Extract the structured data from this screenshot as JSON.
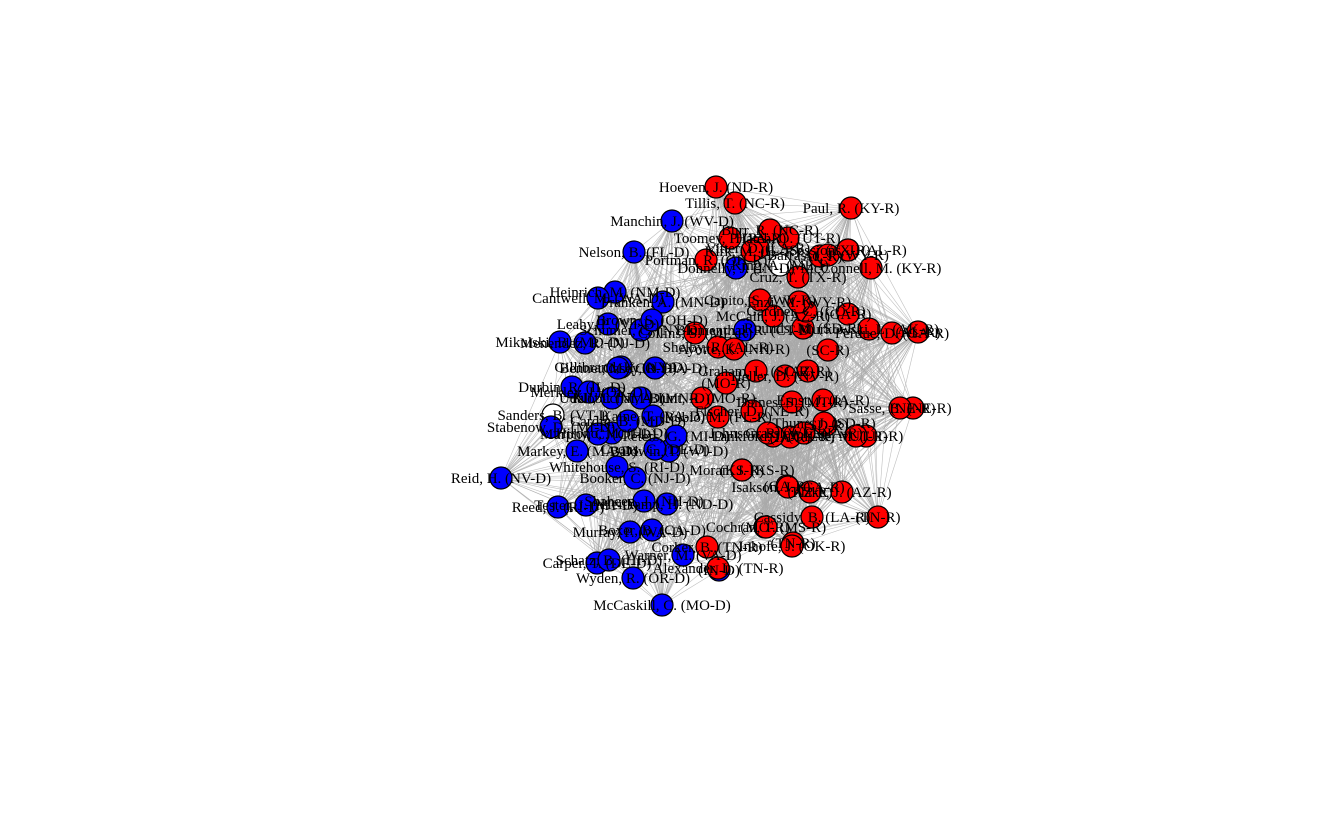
{
  "graph": {
    "type": "network",
    "edge_color": "#a9a9a9",
    "node_outline_color": "#000000",
    "party_colors": {
      "R": "#ff0000",
      "D": "#0000ff",
      "I": "#ffffff"
    },
    "nodes": [
      {
        "label": "Hoeven, J. (ND-R)",
        "party": "R"
      },
      {
        "label": "Tillis, T. (NC-R)",
        "party": "R"
      },
      {
        "label": "Paul, R. (KY-R)",
        "party": "R"
      },
      {
        "label": "Manchin, J. (WV-D)",
        "party": "D"
      },
      {
        "label": "Nelson, B. (FL-D)",
        "party": "D"
      },
      {
        "label": "McConnell, M. (KY-R)",
        "party": "R"
      },
      {
        "label": "Heinrich, M. (NM-D)",
        "party": "D"
      },
      {
        "label": "Cantwell, M. (WA-D)",
        "party": "D"
      },
      {
        "label": "Leahy, P. (VT-D)",
        "party": "D"
      },
      {
        "label": "(GA-R)",
        "party": "R"
      },
      {
        "label": "(AL-R)",
        "party": "R"
      },
      {
        "label": "(SC-R)",
        "party": "R"
      },
      {
        "label": "(AZ-R)",
        "party": "R"
      },
      {
        "label": "(MO-R)",
        "party": "R"
      },
      {
        "label": "(NE-R)",
        "party": "R"
      },
      {
        "label": "(UT-R)",
        "party": "R"
      },
      {
        "label": "Sanders, B. (VT-I)",
        "party": "I"
      },
      {
        "label": "Markey, E. (MA-D)",
        "party": "D"
      },
      {
        "label": "Reid, H. (NV-D)",
        "party": "D"
      },
      {
        "label": "Murray, P. (WA-D)",
        "party": "D"
      },
      {
        "label": "(TN-R)",
        "party": "R"
      },
      {
        "label": "(TN-R)",
        "party": "R"
      },
      {
        "label": "(IN-D)",
        "party": "D"
      },
      {
        "label": "Carper, T. (DE-D)",
        "party": "D"
      },
      {
        "label": "Wyden, R. (OR-D)",
        "party": "D"
      },
      {
        "label": "McCaskill, C. (MO-D)",
        "party": "D"
      },
      {
        "label": "(KS-R)",
        "party": "R"
      },
      {
        "label": "(AZ-R)",
        "party": "R"
      },
      {
        "label": "(GA-R)",
        "party": "R"
      },
      {
        "label": "(MO-R)",
        "party": "R"
      },
      {
        "label": "(TX-R)",
        "party": "R"
      },
      {
        "label": "(AL-R)",
        "party": "R"
      },
      {
        "label": "(SD-R)",
        "party": "R"
      },
      {
        "label": "(IA-R)",
        "party": "R"
      },
      {
        "label": "Durbin, R. (IL-D)",
        "party": "D"
      },
      {
        "label": "Gillibrand, K. (NY-D)",
        "party": "D"
      },
      {
        "label": "Mikulski, B. (MD-D)",
        "party": "D"
      },
      {
        "label": "Menendez, R. (NJ-D)",
        "party": "D"
      },
      {
        "label": "Merkley, J. (OR-D)",
        "party": "D"
      },
      {
        "label": "Stabenow, D. (MI-D)",
        "party": "D"
      },
      {
        "label": "Hirono, M. (HI-D)",
        "party": "D"
      },
      {
        "label": "Whitehouse, S. (RI-D)",
        "party": "D"
      },
      {
        "label": "Booker, C. (NJ-D)",
        "party": "D"
      },
      {
        "label": "Reed, J. (RI-D)",
        "party": "D"
      },
      {
        "label": "Schatz, B. (HI-D)",
        "party": "D"
      },
      {
        "label": "Blunt, R. (MO-R)",
        "party": "R"
      },
      {
        "label": "Cassidy, B. (LA-R)",
        "party": "R"
      },
      {
        "label": "Cochran, T. (MS-R)",
        "party": "R"
      },
      {
        "label": "Isakson, J. (GA-R)",
        "party": "R"
      },
      {
        "label": "Flake, J. (AZ-R)",
        "party": "R"
      },
      {
        "label": "Sasse, B. (NE-R)",
        "party": "R"
      },
      {
        "label": "Lee, M. (UT-R)",
        "party": "R"
      },
      {
        "label": "Thune, J. (SD-R)",
        "party": "R"
      },
      {
        "label": "Grassley, C. (IA-R)",
        "party": "R"
      },
      {
        "label": "Moran, J. (KS-R)",
        "party": "R"
      },
      {
        "label": "Alexander, L. (TN-R)",
        "party": "R"
      },
      {
        "label": "Donnelly, J. (IN-D)",
        "party": "D"
      },
      {
        "label": "Vitter, D. (LA-R)",
        "party": "R"
      },
      {
        "label": "Barrasso, J. (WY-R)",
        "party": "R"
      },
      {
        "label": "Sessions, J. (AL-R)",
        "party": "R"
      },
      {
        "label": "Cruz, T. (TX-R)",
        "party": "R"
      },
      {
        "label": "Graham, L. (SC-R)",
        "party": "R"
      },
      {
        "label": "McCain, J. (AZ-R)",
        "party": "R"
      },
      {
        "label": "Perdue, D. (GA-R)",
        "party": "R"
      },
      {
        "label": "Shelby, R. (AL-R)",
        "party": "R"
      },
      {
        "label": "Hatch, O. (UT-R)",
        "party": "R"
      },
      {
        "label": "Burr, R. (NC-R)",
        "party": "R"
      },
      {
        "label": "Inhofe, J. (OK-R)",
        "party": "R"
      },
      {
        "label": "Corker, B. (TN-R)",
        "party": "R"
      },
      {
        "label": "Warner, M. (VA-D)",
        "party": "D"
      },
      {
        "label": "Casey, R. (PA-D)",
        "party": "D"
      },
      {
        "label": "Schumer, C. (NY-D)",
        "party": "D"
      },
      {
        "label": "Franken, A. (MN-D)",
        "party": "D"
      },
      {
        "label": "Klobuchar, A. (MN-D)",
        "party": "D"
      },
      {
        "label": "Baldwin, T. (WI-D)",
        "party": "D"
      },
      {
        "label": "Coons, C. (DE-D)",
        "party": "D"
      },
      {
        "label": "Cardin, B. (MD-D)",
        "party": "D"
      },
      {
        "label": "Udall, T. (NM-D)",
        "party": "D"
      },
      {
        "label": "Tester, J. (MT-D)",
        "party": "D"
      },
      {
        "label": "Boxer, B. (CA-D)",
        "party": "D"
      },
      {
        "label": "Heitkamp, H. (ND-D)",
        "party": "D"
      },
      {
        "label": "Shaheen, J. (NH-D)",
        "party": "D"
      },
      {
        "label": "Bennet, M. (CO-D)",
        "party": "D"
      },
      {
        "label": "Kaine, T. (VA-D)",
        "party": "D"
      },
      {
        "label": "Murphy, C. (CT-D)",
        "party": "D"
      },
      {
        "label": "Peters, G. (MI-D)",
        "party": "D"
      },
      {
        "label": "Brown, S. (OH-D)",
        "party": "D"
      },
      {
        "label": "Blumenthal, R. (CT-D)",
        "party": "D"
      },
      {
        "label": "King, A. (ME-I)",
        "party": "I"
      },
      {
        "label": "Capito, S. (WV-R)",
        "party": "R"
      },
      {
        "label": "Rounds, M. (SD-R)",
        "party": "R"
      },
      {
        "label": "Ernst, J. (IA-R)",
        "party": "R"
      },
      {
        "label": "Daines, S. (MT-R)",
        "party": "R"
      },
      {
        "label": "Lankford, J. (OK-R)",
        "party": "R"
      },
      {
        "label": "Johnson, R. (WI-R)",
        "party": "R"
      },
      {
        "label": "Fischer, D. (NE-R)",
        "party": "R"
      },
      {
        "label": "Rubio, M. (FL-R)",
        "party": "R"
      },
      {
        "label": "Portman, R. (OH-R)",
        "party": "R"
      },
      {
        "label": "Toomey, P. (PA-R)",
        "party": "R"
      },
      {
        "label": "Gardner, C. (CO-R)",
        "party": "R"
      },
      {
        "label": "Heller, D. (NV-R)",
        "party": "R"
      },
      {
        "label": "Enzi, M. (WY-R)",
        "party": "R"
      },
      {
        "label": "Collins, S. (ME-R)",
        "party": "R"
      },
      {
        "label": "Ayotte, K. (NH-R)",
        "party": "R"
      },
      {
        "label": "Kirk, M. (IL-R)",
        "party": "R"
      },
      {
        "label": "Murkowski, L. (AK-R)",
        "party": "R"
      }
    ]
  }
}
